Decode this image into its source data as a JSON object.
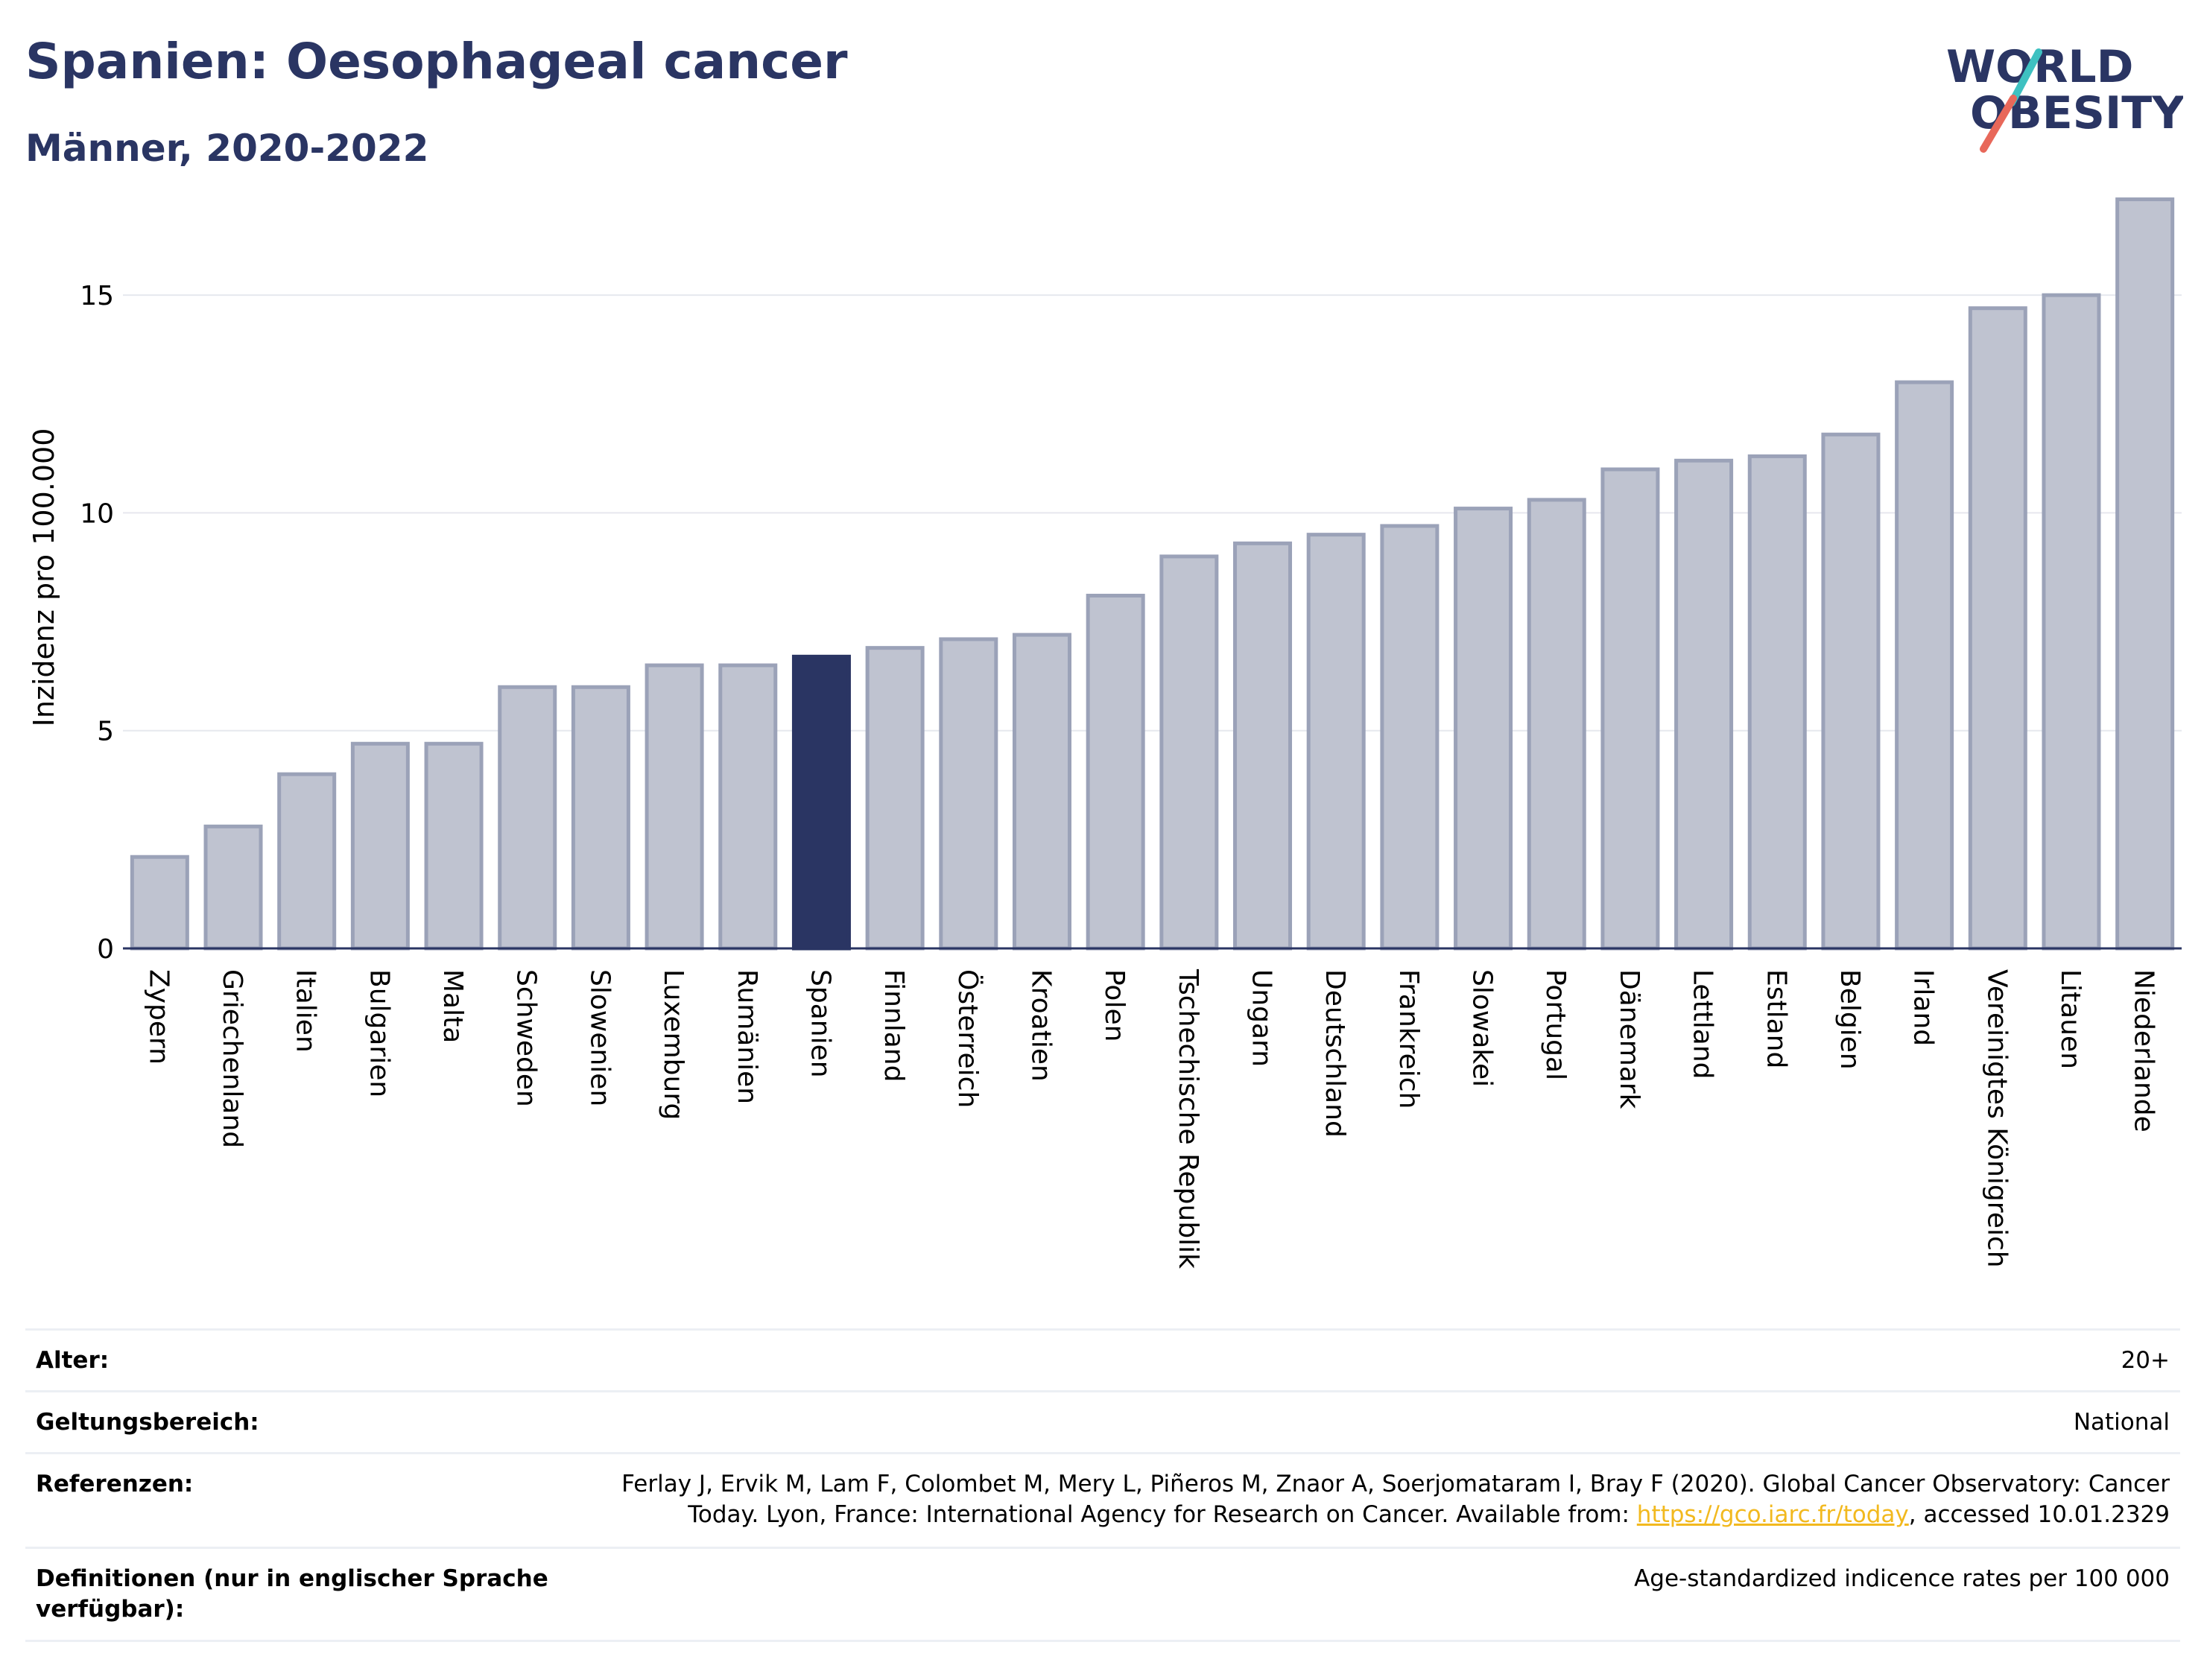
{
  "header": {
    "title": "Spanien: Oesophageal cancer",
    "subtitle": "Männer, 2020-2022"
  },
  "logo": {
    "line1": "WORLD",
    "line2": "OBESITY",
    "text_color": "#2a3563",
    "accent_teal": "#3ec1c1",
    "accent_coral": "#e8685a"
  },
  "chart_data": {
    "type": "bar",
    "title": "",
    "xlabel": "",
    "ylabel": "Inzidenz pro 100.000",
    "ylim": [
      0,
      17.5
    ],
    "yticks": [
      0,
      5,
      10,
      15
    ],
    "grid": true,
    "highlight_category": "Spanien",
    "colors": {
      "bar": "#bfc3d0",
      "bar_edge": "#9ba2b8",
      "highlight": "#2a3563",
      "grid": "#e6e8ee",
      "axis": "#2a3563"
    },
    "categories": [
      "Zypern",
      "Griechenland",
      "Italien",
      "Bulgarien",
      "Malta",
      "Schweden",
      "Slowenien",
      "Luxemburg",
      "Rumänien",
      "Spanien",
      "Finnland",
      "Österreich",
      "Kroatien",
      "Polen",
      "Tschechische Republik",
      "Ungarn",
      "Deutschland",
      "Frankreich",
      "Slowakei",
      "Portugal",
      "Dänemark",
      "Lettland",
      "Estland",
      "Belgien",
      "Irland",
      "Vereinigtes Königreich",
      "Litauen",
      "Niederlande"
    ],
    "values": [
      2.1,
      2.8,
      4.0,
      4.7,
      4.7,
      6.0,
      6.0,
      6.5,
      6.5,
      6.7,
      6.9,
      7.1,
      7.2,
      8.1,
      9.0,
      9.3,
      9.5,
      9.7,
      10.1,
      10.3,
      11.0,
      11.2,
      11.3,
      11.8,
      13.0,
      14.7,
      15.0,
      17.2
    ]
  },
  "meta": {
    "age_label": "Alter:",
    "age_value": "20+",
    "scope_label": "Geltungsbereich:",
    "scope_value": "National",
    "ref_label": "Referenzen:",
    "ref_line1": "Ferlay J, Ervik M, Lam F, Colombet M, Mery L, Piñeros M, Znaor A, Soerjomataram I, Bray F (2020). Global Cancer Observatory: Cancer",
    "ref_line2_pre": "Today. Lyon, France: International Agency for Research on Cancer. Available from: ",
    "ref_link": "https://gco.iarc.fr/today",
    "ref_line2_post": ", accessed 10.01.2329",
    "def_label": "Definitionen (nur in englischer Sprache verfügbar):",
    "def_value": "Age-standardized indicence rates per 100 000"
  }
}
